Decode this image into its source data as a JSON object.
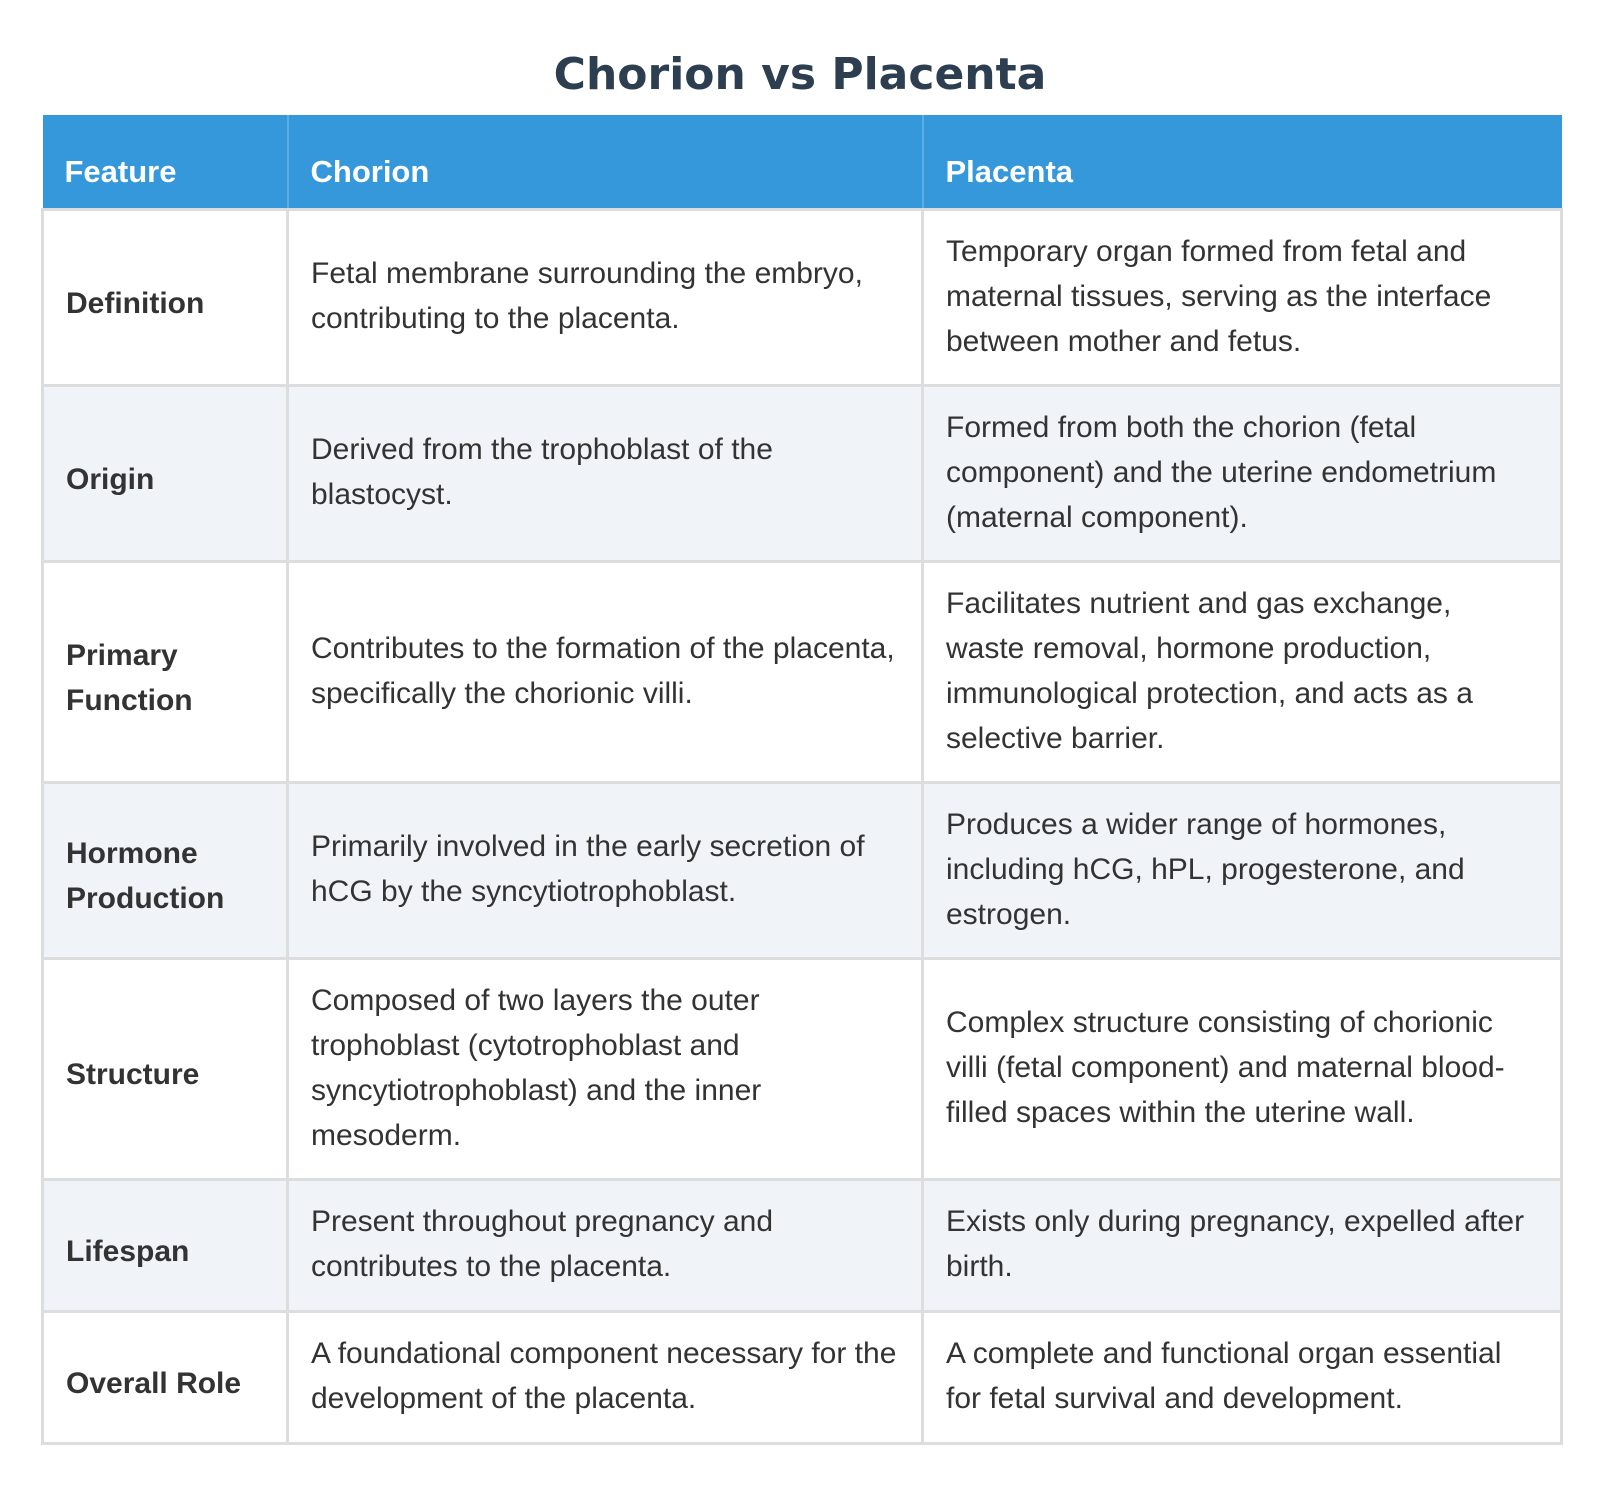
{
  "title": "Chorion vs Placenta",
  "table": {
    "headers": [
      "Feature",
      "Chorion",
      "Placenta"
    ],
    "rows": [
      {
        "feature": "Definition",
        "chorion": "Fetal membrane surrounding the embryo, contributing to the placenta.",
        "placenta": "Temporary organ formed from fetal and maternal tissues, serving as the interface between mother and fetus."
      },
      {
        "feature": "Origin",
        "chorion": "Derived from the trophoblast of the blastocyst.",
        "placenta": "Formed from both the chorion (fetal component) and the uterine endometrium (maternal component)."
      },
      {
        "feature": "Primary Function",
        "chorion": "Contributes to the formation of the placenta, specifically the chorionic villi.",
        "placenta": "Facilitates nutrient and gas exchange, waste removal, hormone production, immunological protection, and acts as a selective barrier."
      },
      {
        "feature": "Hormone Production",
        "chorion": "Primarily involved in the early secretion of hCG by the syncytiotrophoblast.",
        "placenta": "Produces a wider range of hormones, including hCG, hPL, progesterone, and estrogen."
      },
      {
        "feature": "Structure",
        "chorion": "Composed of two layers the outer trophoblast (cytotrophoblast and syncytiotrophoblast) and the inner mesoderm.",
        "placenta": "Complex structure consisting of chorionic villi (fetal component) and maternal blood-filled spaces within the uterine wall."
      },
      {
        "feature": "Lifespan",
        "chorion": "Present throughout pregnancy and contributes to the placenta.",
        "placenta": "Exists only during pregnancy, expelled after birth."
      },
      {
        "feature": "Overall Role",
        "chorion": "A foundational component necessary for the development of the placenta.",
        "placenta": "A complete and functional organ essential for fetal survival and development."
      }
    ]
  },
  "colors": {
    "title": "#2c3e50",
    "header_bg": "#3498db",
    "header_text": "#ffffff",
    "row_alt_bg": "#f0f4f9",
    "border": "#dddddd"
  }
}
